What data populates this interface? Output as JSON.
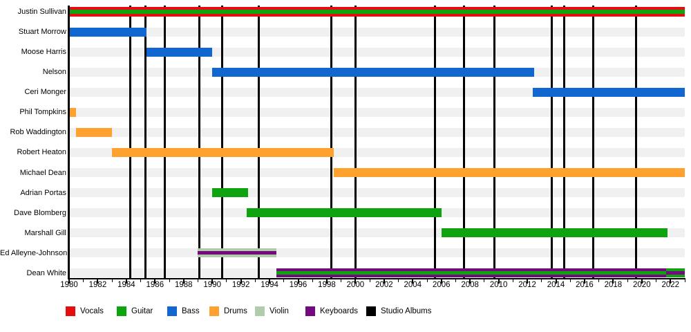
{
  "chart_data": {
    "type": "timeline",
    "x_axis": {
      "min": 1980,
      "max": 2023,
      "major_tick_labels": [
        "1980",
        "1982",
        "1984",
        "1986",
        "1988",
        "1990",
        "1992",
        "1994",
        "1996",
        "1998",
        "2000",
        "2002",
        "2004",
        "2006",
        "2008",
        "2010",
        "2012",
        "2014",
        "2016",
        "2018",
        "2020",
        "2022"
      ],
      "major_step": 2,
      "minor_step": 1
    },
    "colors": {
      "vocals": "#e50d0d",
      "guitar": "#0fa30f",
      "bass": "#1166cf",
      "drums": "#ffa12e",
      "violin": "#b1ccab",
      "keyboards": "#730b7e",
      "albums": "#000000"
    },
    "members": [
      {
        "label": "Justin Sullivan",
        "bars": [
          {
            "start": 1980,
            "end": 2023,
            "role": "vocals",
            "stripe_role": "guitar",
            "h": 14,
            "sh": 6
          }
        ]
      },
      {
        "label": "Stuart Morrow",
        "bars": [
          {
            "start": 1980,
            "end": 1985.4,
            "role": "bass"
          }
        ]
      },
      {
        "label": "Moose Harris",
        "bars": [
          {
            "start": 1985.4,
            "end": 1990,
            "role": "bass"
          }
        ]
      },
      {
        "label": "Nelson",
        "bars": [
          {
            "start": 1990,
            "end": 2012.5,
            "role": "bass"
          }
        ]
      },
      {
        "label": "Ceri Monger",
        "bars": [
          {
            "start": 2012.4,
            "end": 2023,
            "role": "bass"
          }
        ]
      },
      {
        "label": "Phil Tompkins",
        "bars": [
          {
            "start": 1980,
            "end": 1980.5,
            "role": "drums"
          }
        ]
      },
      {
        "label": "Rob Waddington",
        "bars": [
          {
            "start": 1980.5,
            "end": 1983,
            "role": "drums"
          }
        ]
      },
      {
        "label": "Robert Heaton",
        "bars": [
          {
            "start": 1983,
            "end": 1998.5,
            "role": "drums"
          }
        ]
      },
      {
        "label": "Michael Dean",
        "bars": [
          {
            "start": 1998.5,
            "end": 2023,
            "role": "drums"
          }
        ]
      },
      {
        "label": "Adrian Portas",
        "bars": [
          {
            "start": 1990,
            "end": 1992.5,
            "role": "guitar"
          }
        ]
      },
      {
        "label": "Dave Blomberg",
        "bars": [
          {
            "start": 1992.4,
            "end": 2006,
            "role": "guitar"
          }
        ]
      },
      {
        "label": "Marshall Gill",
        "bars": [
          {
            "start": 2006,
            "end": 2021.8,
            "role": "guitar"
          }
        ]
      },
      {
        "label": "Ed Alleyne-Johnson",
        "bars": [
          {
            "start": 1989,
            "end": 1994.5,
            "role": "violin",
            "stripe_role": "keyboards"
          }
        ]
      },
      {
        "label": "Dean White",
        "bars": [
          {
            "start": 1994.5,
            "end": 2021.7,
            "role": "keyboards",
            "stripe_role": "guitar"
          },
          {
            "start": 2021.7,
            "end": 2023,
            "role": "guitar",
            "stripe_role": "keyboards"
          }
        ]
      }
    ],
    "album_years": [
      1984.25,
      1985.35,
      1986.7,
      1989.1,
      1990.7,
      1993.25,
      1998.3,
      2000.0,
      2005.55,
      2007.6,
      2009.7,
      2013.7,
      2014.6,
      2016.6,
      2019.6
    ],
    "legend": [
      {
        "label": "Vocals",
        "role": "vocals"
      },
      {
        "label": "Guitar",
        "role": "guitar"
      },
      {
        "label": "Bass",
        "role": "bass"
      },
      {
        "label": "Drums",
        "role": "drums"
      },
      {
        "label": "Violin",
        "role": "violin"
      },
      {
        "label": "Keyboards",
        "role": "keyboards"
      },
      {
        "label": "Studio Albums",
        "role": "albums"
      }
    ]
  }
}
